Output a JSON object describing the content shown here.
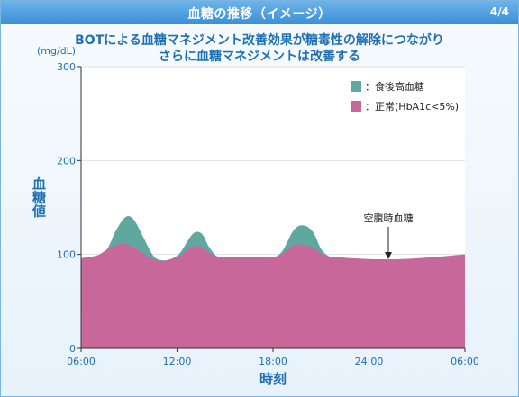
{
  "header": {
    "title": "血糖の推移（イメージ）",
    "page_indicator": "4/4"
  },
  "headline": {
    "line1": "BOTによる血糖マネジメント改善効果が糖毒性の解除につながり",
    "line2": "さらに血糖マネジメントは改善する"
  },
  "colors": {
    "accent": "#1f6fb5",
    "postprandial": "#5fa89f",
    "normal": "#c8679a",
    "header": "#4f9fe0"
  },
  "chart_data": {
    "type": "area",
    "title": "BOTによる血糖マネジメント改善効果が糖毒性の解除につながり さらに血糖マネジメントは改善する",
    "xlabel": "時刻",
    "ylabel": "血糖値",
    "y_unit": "(mg/dL)",
    "ylim": [
      0,
      300
    ],
    "y_ticks": [
      "0",
      "100",
      "200",
      "300"
    ],
    "xlim": [
      6,
      30
    ],
    "x_ticks": [
      "06:00",
      "12:00",
      "18:00",
      "24:00",
      "06:00"
    ],
    "legend_position": "top-right",
    "series": [
      {
        "name": "食後高血糖",
        "color": "#5fa89f",
        "x": [
          6,
          7,
          7.6,
          8.2,
          8.8,
          9.3,
          9.9,
          10.5,
          11.0,
          11.6,
          12.2,
          12.8,
          13.2,
          13.6,
          14.0,
          14.5,
          15,
          16,
          17,
          18,
          18.6,
          19.3,
          19.9,
          20.5,
          21.0,
          21.5,
          22.0,
          24,
          26,
          28,
          30
        ],
        "y": [
          96,
          99,
          105,
          126,
          140,
          137,
          118,
          99,
          94,
          95,
          102,
          118,
          124,
          121,
          108,
          98,
          97,
          97,
          97,
          97,
          104,
          126,
          131,
          124,
          106,
          98,
          97,
          95,
          95,
          97,
          100
        ]
      },
      {
        "name": "正常(HbA1c<5%)",
        "color": "#c8679a",
        "x": [
          6,
          7,
          7.6,
          8.2,
          8.8,
          9.3,
          9.9,
          10.5,
          11.0,
          11.6,
          12.2,
          12.8,
          13.2,
          13.6,
          14.0,
          14.5,
          15,
          16,
          17,
          18,
          18.6,
          19.3,
          19.9,
          20.5,
          21.0,
          21.5,
          22.0,
          24,
          26,
          28,
          30
        ],
        "y": [
          96,
          99,
          105,
          110,
          111,
          108,
          101,
          95,
          93,
          95,
          99,
          107,
          109,
          107,
          102,
          98,
          97,
          97,
          97,
          97,
          101,
          110,
          110,
          107,
          101,
          98,
          97,
          95,
          95,
          97,
          100
        ]
      }
    ],
    "annotations": [
      {
        "text": "空腹時血糖",
        "x": 24.5,
        "y": 96
      }
    ]
  }
}
